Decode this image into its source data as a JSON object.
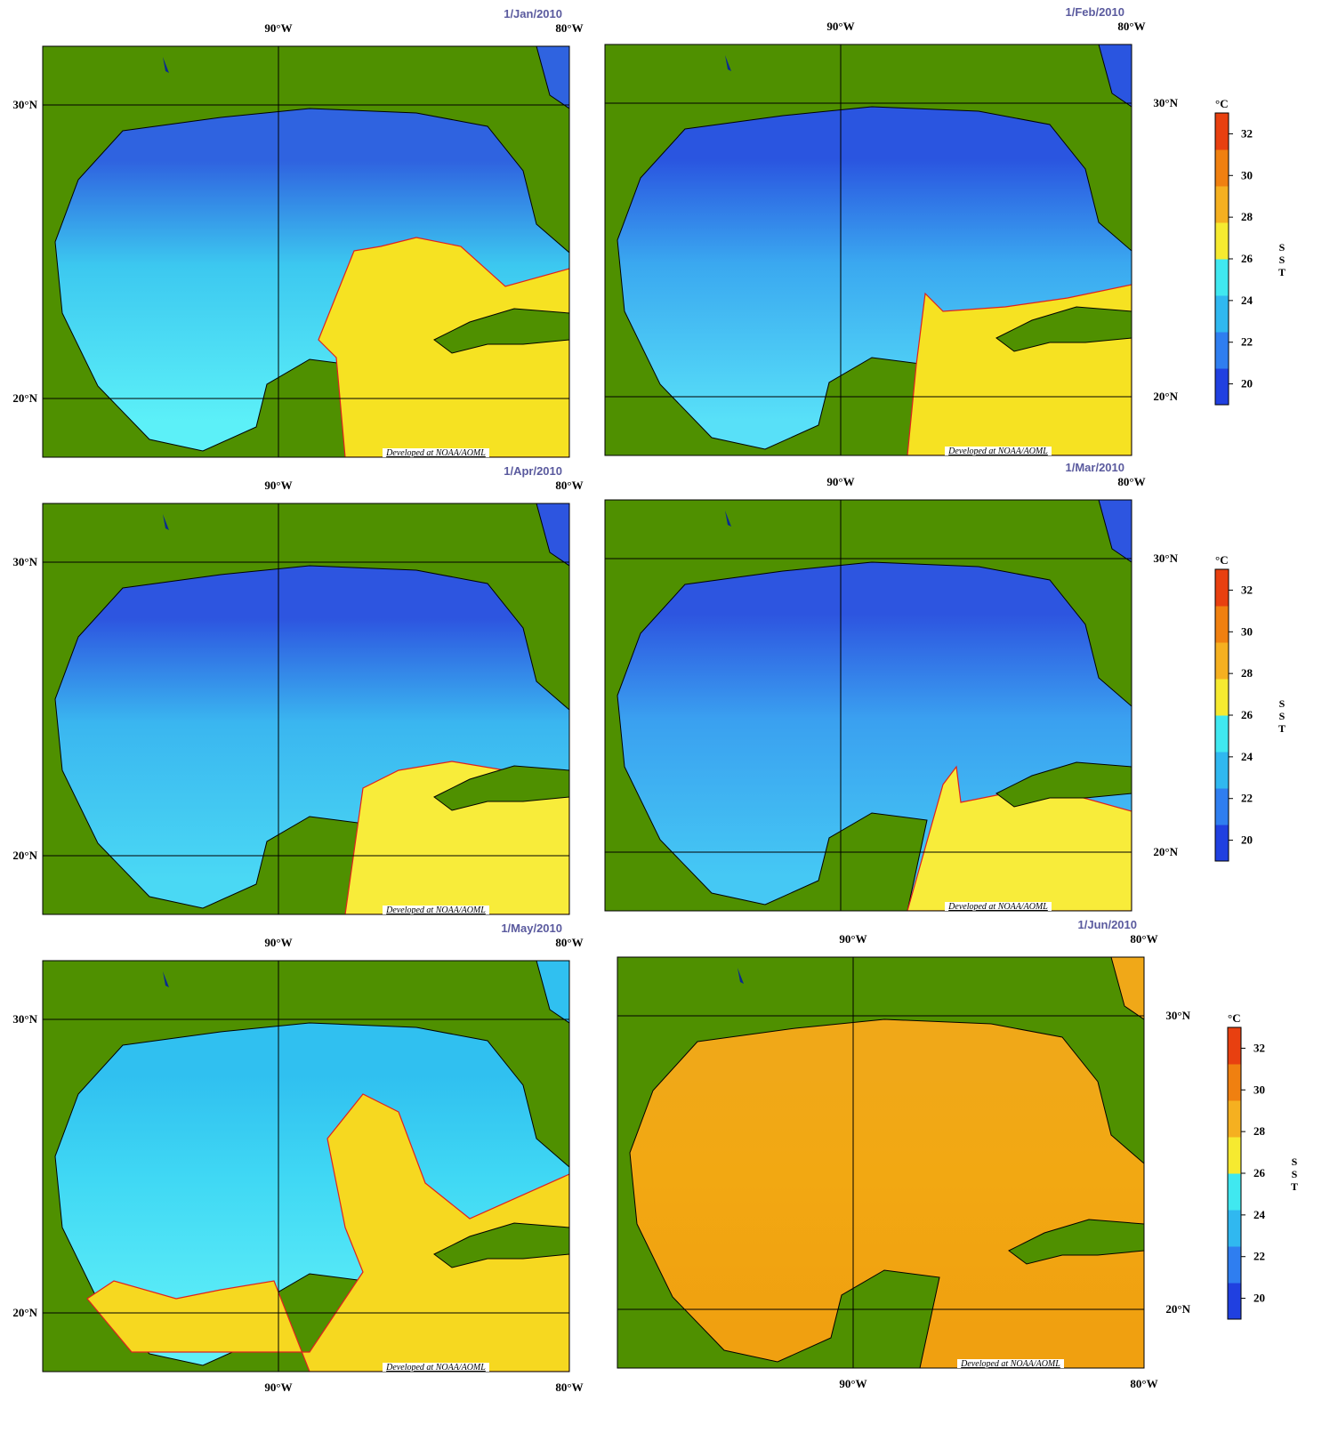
{
  "panels": [
    {
      "date": "1/Jan/2010",
      "lon_labels": [
        "90°W",
        "80°W"
      ],
      "lat_labels": [
        "30°N",
        "20°N"
      ],
      "credit": "Developed at NOAA/AOML"
    },
    {
      "date": "1/Feb/2010",
      "lon_labels": [
        "90°W",
        "80°W"
      ],
      "lat_labels": [
        "30°N",
        "20°N"
      ],
      "credit": "Developed at NOAA/AOML"
    },
    {
      "date": "1/Apr/2010",
      "lon_labels": [
        "90°W",
        "80°W"
      ],
      "lat_labels": [
        "30°N",
        "20°N"
      ],
      "credit": "Developed at NOAA/AOML"
    },
    {
      "date": "1/Mar/2010",
      "lon_labels": [
        "90°W",
        "80°W"
      ],
      "lat_labels": [
        "30°N",
        "20°N"
      ],
      "credit": "Developed at NOAA/AOML"
    },
    {
      "date": "1/May/2010",
      "lon_labels": [
        "90°W",
        "80°W"
      ],
      "lat_labels": [
        "30°N",
        "20°N"
      ],
      "credit": "Developed at NOAA/AOML"
    },
    {
      "date": "1/Jun/2010",
      "lon_labels": [
        "90°W",
        "80°W"
      ],
      "lat_labels": [
        "30°N",
        "20°N"
      ],
      "credit": "Developed at NOAA/AOML"
    }
  ],
  "colorbar": {
    "unit": "°C",
    "label": "SST",
    "ticks": [
      20,
      22,
      24,
      26,
      28,
      30,
      32
    ]
  }
}
